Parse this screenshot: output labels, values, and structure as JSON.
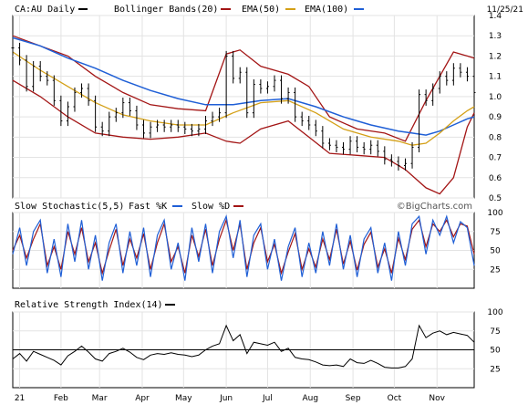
{
  "chart_data": [
    {
      "type": "line",
      "panel": "price",
      "title": "CA:AU Daily",
      "date": "11/25/21",
      "legend": [
        "Bollinger Bands(20)",
        "EMA(50)",
        "EMA(100)"
      ],
      "colors": {
        "price": "#000000",
        "bollinger": "#a31515",
        "ema50": "#d4a017",
        "ema100": "#1f5fd6"
      },
      "ylim": [
        0.5,
        1.4
      ],
      "y_ticks": [
        1.4,
        1.3,
        1.2,
        1.1,
        1.0,
        0.9,
        0.8,
        0.7,
        0.6,
        0.5
      ],
      "x_labels": [
        "21",
        "Feb",
        "Mar",
        "Apr",
        "May",
        "Jun",
        "Jul",
        "Aug",
        "Sep",
        "Oct",
        "Nov"
      ],
      "x_label_days": [
        5,
        35,
        63,
        94,
        124,
        155,
        185,
        216,
        247,
        277,
        308
      ],
      "x_range": [
        0,
        335
      ],
      "price": {
        "x": [
          0,
          5,
          10,
          15,
          20,
          25,
          30,
          35,
          40,
          45,
          50,
          55,
          60,
          65,
          70,
          75,
          80,
          85,
          90,
          95,
          100,
          105,
          110,
          115,
          120,
          125,
          130,
          135,
          140,
          145,
          150,
          155,
          160,
          165,
          170,
          175,
          180,
          185,
          190,
          195,
          200,
          205,
          210,
          215,
          220,
          225,
          230,
          235,
          240,
          245,
          250,
          255,
          260,
          265,
          270,
          275,
          280,
          285,
          290,
          295,
          300,
          305,
          310,
          315,
          320,
          325,
          330,
          335
        ],
        "values": [
          1.24,
          1.18,
          1.05,
          1.15,
          1.1,
          1.08,
          0.98,
          0.88,
          0.95,
          1.02,
          1.04,
          0.98,
          0.85,
          0.83,
          0.9,
          0.92,
          0.97,
          0.93,
          0.86,
          0.82,
          0.85,
          0.86,
          0.85,
          0.86,
          0.85,
          0.84,
          0.83,
          0.84,
          0.88,
          0.9,
          0.92,
          1.2,
          1.09,
          1.12,
          0.92,
          1.06,
          1.04,
          1.05,
          1.08,
          0.99,
          1.02,
          0.9,
          0.88,
          0.86,
          0.83,
          0.77,
          0.76,
          0.75,
          0.74,
          0.78,
          0.75,
          0.74,
          0.76,
          0.73,
          0.69,
          0.68,
          0.66,
          0.67,
          0.75,
          1.01,
          0.98,
          1.04,
          1.1,
          1.08,
          1.14,
          1.12,
          1.1,
          1.02
        ]
      },
      "bollinger_upper": {
        "x": [
          0,
          20,
          40,
          60,
          80,
          100,
          120,
          140,
          155,
          165,
          180,
          200,
          215,
          230,
          250,
          270,
          285,
          300,
          310,
          320,
          330,
          335
        ],
        "values": [
          1.3,
          1.25,
          1.2,
          1.1,
          1.02,
          0.96,
          0.94,
          0.93,
          1.21,
          1.23,
          1.15,
          1.11,
          1.05,
          0.9,
          0.84,
          0.82,
          0.78,
          0.98,
          1.1,
          1.22,
          1.2,
          1.19
        ]
      },
      "bollinger_lower": {
        "x": [
          0,
          20,
          40,
          60,
          80,
          100,
          120,
          140,
          155,
          165,
          180,
          200,
          215,
          230,
          250,
          270,
          285,
          300,
          310,
          320,
          330,
          335
        ],
        "values": [
          1.08,
          1.0,
          0.9,
          0.82,
          0.8,
          0.79,
          0.8,
          0.82,
          0.78,
          0.77,
          0.84,
          0.88,
          0.8,
          0.72,
          0.71,
          0.7,
          0.64,
          0.55,
          0.52,
          0.6,
          0.85,
          0.92
        ]
      },
      "ema50": {
        "x": [
          0,
          20,
          40,
          60,
          80,
          100,
          120,
          140,
          160,
          180,
          200,
          220,
          240,
          260,
          280,
          290,
          300,
          310,
          320,
          330,
          335
        ],
        "values": [
          1.22,
          1.13,
          1.05,
          0.97,
          0.91,
          0.88,
          0.86,
          0.86,
          0.92,
          0.97,
          0.98,
          0.92,
          0.84,
          0.8,
          0.78,
          0.76,
          0.77,
          0.82,
          0.88,
          0.93,
          0.95
        ]
      },
      "ema100": {
        "x": [
          0,
          20,
          40,
          60,
          80,
          100,
          120,
          140,
          160,
          180,
          200,
          220,
          240,
          260,
          280,
          290,
          300,
          310,
          320,
          330,
          335
        ],
        "values": [
          1.29,
          1.25,
          1.19,
          1.14,
          1.08,
          1.03,
          0.99,
          0.96,
          0.96,
          0.98,
          0.99,
          0.95,
          0.9,
          0.86,
          0.83,
          0.82,
          0.81,
          0.83,
          0.86,
          0.89,
          0.9
        ]
      }
    },
    {
      "type": "line",
      "panel": "stochastic",
      "title": "Slow Stochastic(5,5)",
      "legend": [
        "Fast %K",
        "Slow %D"
      ],
      "colors": {
        "fast": "#1f5fd6",
        "slow": "#a31515"
      },
      "ylim": [
        0,
        100
      ],
      "y_ticks": [
        100,
        75,
        50,
        25
      ],
      "x": [
        0,
        5,
        10,
        15,
        20,
        25,
        30,
        35,
        40,
        45,
        50,
        55,
        60,
        65,
        70,
        75,
        80,
        85,
        90,
        95,
        100,
        105,
        110,
        115,
        120,
        125,
        130,
        135,
        140,
        145,
        150,
        155,
        160,
        165,
        170,
        175,
        180,
        185,
        190,
        195,
        200,
        205,
        210,
        215,
        220,
        225,
        230,
        235,
        240,
        245,
        250,
        255,
        260,
        265,
        270,
        275,
        280,
        285,
        290,
        295,
        300,
        305,
        310,
        315,
        320,
        325,
        330,
        335
      ],
      "fast_k": [
        45,
        80,
        30,
        75,
        90,
        20,
        65,
        15,
        85,
        35,
        90,
        25,
        70,
        10,
        60,
        85,
        20,
        75,
        30,
        80,
        15,
        70,
        90,
        25,
        60,
        10,
        80,
        35,
        85,
        20,
        75,
        95,
        40,
        90,
        15,
        70,
        85,
        25,
        65,
        10,
        55,
        80,
        15,
        60,
        20,
        75,
        30,
        85,
        25,
        70,
        15,
        65,
        80,
        20,
        60,
        10,
        75,
        30,
        85,
        95,
        45,
        90,
        70,
        95,
        60,
        88,
        80,
        30
      ],
      "slow_d": [
        50,
        70,
        40,
        65,
        85,
        30,
        55,
        25,
        75,
        45,
        80,
        35,
        60,
        20,
        50,
        78,
        30,
        65,
        40,
        72,
        25,
        60,
        85,
        35,
        55,
        20,
        70,
        42,
        78,
        30,
        65,
        90,
        50,
        85,
        25,
        60,
        80,
        35,
        58,
        20,
        48,
        72,
        25,
        52,
        28,
        65,
        38,
        78,
        32,
        62,
        24,
        58,
        74,
        28,
        52,
        20,
        66,
        38,
        78,
        90,
        55,
        85,
        75,
        90,
        68,
        85,
        82,
        45
      ]
    },
    {
      "type": "line",
      "panel": "rsi",
      "title": "Relative Strength Index(14)",
      "colors": {
        "rsi": "#000000"
      },
      "ylim": [
        0,
        100
      ],
      "y_ticks": [
        100,
        75,
        50,
        25
      ],
      "reference_line": 50,
      "x": [
        0,
        5,
        10,
        15,
        20,
        25,
        30,
        35,
        40,
        45,
        50,
        55,
        60,
        65,
        70,
        75,
        80,
        85,
        90,
        95,
        100,
        105,
        110,
        115,
        120,
        125,
        130,
        135,
        140,
        145,
        150,
        155,
        160,
        165,
        170,
        175,
        180,
        185,
        190,
        195,
        200,
        205,
        210,
        215,
        220,
        225,
        230,
        235,
        240,
        245,
        250,
        255,
        260,
        265,
        270,
        275,
        280,
        285,
        290,
        295,
        300,
        305,
        310,
        315,
        320,
        325,
        330,
        335
      ],
      "rsi": [
        38,
        45,
        35,
        48,
        44,
        40,
        36,
        30,
        42,
        48,
        55,
        47,
        38,
        35,
        45,
        48,
        52,
        47,
        40,
        37,
        43,
        45,
        44,
        46,
        44,
        43,
        41,
        43,
        50,
        55,
        58,
        82,
        62,
        70,
        45,
        60,
        58,
        56,
        60,
        48,
        52,
        40,
        38,
        37,
        34,
        30,
        29,
        30,
        28,
        38,
        33,
        32,
        36,
        32,
        27,
        26,
        26,
        28,
        38,
        82,
        66,
        72,
        75,
        70,
        73,
        71,
        69,
        60
      ]
    }
  ],
  "brand": "©BigCharts.com"
}
